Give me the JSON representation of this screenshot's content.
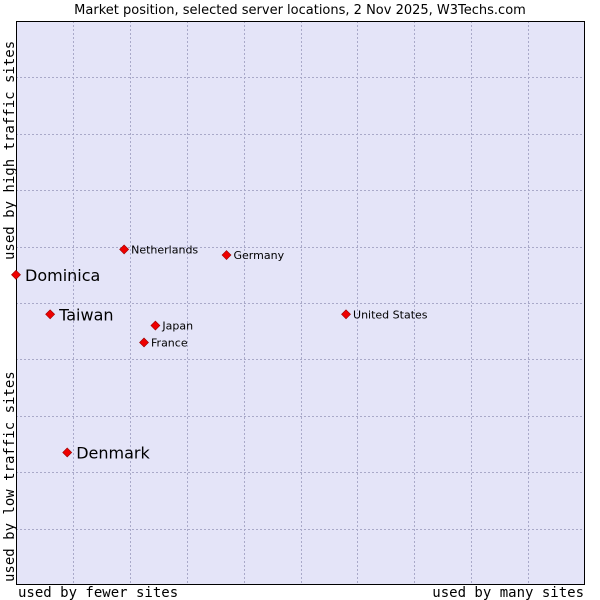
{
  "chart_data": {
    "type": "scatter",
    "title": "Market position, selected server locations, 2 Nov 2025, W3Techs.com",
    "xlabel_left": "used by fewer sites",
    "xlabel_right": "used by many sites",
    "ylabel_bottom": "used by low traffic sites",
    "ylabel_top": "used by high traffic sites",
    "xlim": [
      0,
      10
    ],
    "ylim": [
      0,
      10
    ],
    "grid": true,
    "gridlines": 10,
    "points": [
      {
        "name": "Dominica",
        "x": 0.0,
        "y": 5.5,
        "emphasis": true
      },
      {
        "name": "Taiwan",
        "x": 0.6,
        "y": 4.8,
        "emphasis": true
      },
      {
        "name": "Denmark",
        "x": 0.9,
        "y": 2.35,
        "emphasis": true
      },
      {
        "name": "Netherlands",
        "x": 1.9,
        "y": 5.95,
        "emphasis": false
      },
      {
        "name": "Germany",
        "x": 3.7,
        "y": 5.85,
        "emphasis": false
      },
      {
        "name": "Japan",
        "x": 2.45,
        "y": 4.6,
        "emphasis": false
      },
      {
        "name": "France",
        "x": 2.25,
        "y": 4.3,
        "emphasis": false
      },
      {
        "name": "United States",
        "x": 5.8,
        "y": 4.8,
        "emphasis": false
      }
    ]
  },
  "colors": {
    "plot_bg": "#e4e4f8",
    "grid": "#a9a9c9",
    "border": "#000000",
    "point": "#ee0000"
  }
}
